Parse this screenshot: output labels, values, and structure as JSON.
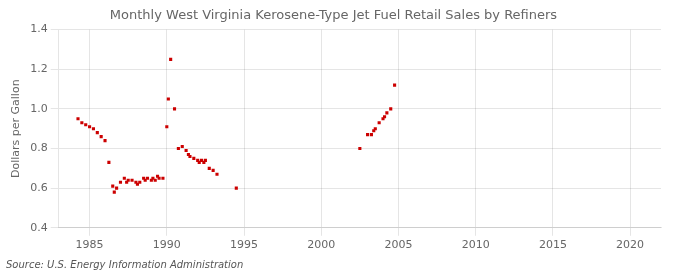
{
  "chart_data": {
    "type": "scatter",
    "title": "Monthly West Virginia Kerosene-Type Jet Fuel Retail Sales by Refiners",
    "y_label": "Dollars per Gallon",
    "annotation": "Source: U.S. Energy Information Administration",
    "x": [
      1984.25,
      1984.5,
      1984.75,
      1985.0,
      1985.25,
      1985.5,
      1985.75,
      1986.0,
      1986.25,
      1986.5,
      1986.6,
      1986.75,
      1987.0,
      1987.25,
      1987.4,
      1987.5,
      1987.75,
      1988.0,
      1988.1,
      1988.25,
      1988.5,
      1988.6,
      1988.75,
      1989.0,
      1989.1,
      1989.25,
      1989.4,
      1989.5,
      1989.75,
      1990.0,
      1990.1,
      1990.25,
      1990.5,
      1990.75,
      1991.0,
      1991.25,
      1991.4,
      1991.5,
      1991.75,
      1992.0,
      1992.1,
      1992.25,
      1992.4,
      1992.5,
      1992.75,
      1993.0,
      1993.25,
      1994.5,
      2002.5,
      2003.0,
      2003.25,
      2003.4,
      2003.5,
      2003.75,
      2004.0,
      2004.1,
      2004.25,
      2004.5,
      2004.75
    ],
    "values": [
      0.95,
      0.93,
      0.92,
      0.91,
      0.9,
      0.88,
      0.86,
      0.84,
      0.73,
      0.61,
      0.58,
      0.6,
      0.63,
      0.65,
      0.63,
      0.64,
      0.64,
      0.63,
      0.62,
      0.63,
      0.65,
      0.64,
      0.65,
      0.64,
      0.65,
      0.64,
      0.66,
      0.65,
      0.65,
      0.91,
      1.05,
      1.25,
      1.0,
      0.8,
      0.81,
      0.79,
      0.77,
      0.76,
      0.75,
      0.74,
      0.73,
      0.74,
      0.73,
      0.74,
      0.7,
      0.69,
      0.67,
      0.6,
      0.8,
      0.87,
      0.87,
      0.89,
      0.9,
      0.93,
      0.95,
      0.96,
      0.98,
      1.0,
      1.12
    ],
    "color": "#cc0000",
    "marker": "square",
    "xlim": [
      1983,
      2022
    ],
    "ylim": [
      0.4,
      1.4
    ],
    "xticks": [
      1985,
      1990,
      1995,
      2000,
      2005,
      2010,
      2015,
      2020
    ],
    "yticks": [
      0.4,
      0.6,
      0.8,
      {
        "value": 1,
        "label": "1.0"
      },
      1.2,
      1.4
    ],
    "grid": true
  }
}
